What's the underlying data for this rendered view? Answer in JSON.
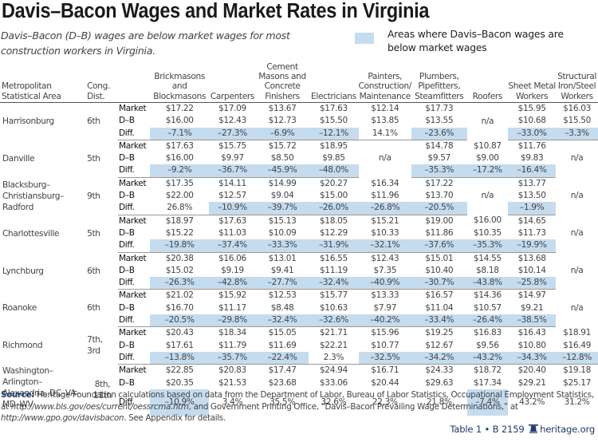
{
  "header": {
    "title": "Davis–Bacon Wages and Market Rates in Virginia",
    "subtitle": "Davis–Bacon (D–B) wages are below market wages for most construction workers in Virginia.",
    "legend_label": "Areas where Davis–Bacon wages are below market wages",
    "highlight_color": "#c5dcef"
  },
  "table": {
    "columns": {
      "msa": "Metropolitan Statistical Area",
      "cong": "Cong. Dist.",
      "trades": [
        "Brickmasons and Blockmasons",
        "Carpenters",
        "Cement Masons and Concrete Finishers",
        "Electricians",
        "Painters, Construction/ Maintenance",
        "Plumbers, Pipefitters, Steamfitters",
        "Roofers",
        "Sheet Metal Workers",
        "Structural Iron/Steel Workers"
      ]
    },
    "row_labels": {
      "market": "Market",
      "db": "D–B",
      "diff": "Diff."
    }
  },
  "chart_data": {
    "type": "table",
    "title": "Davis–Bacon Wages and Market Rates in Virginia",
    "subtitle": "Davis–Bacon (D–B) wages are below market wages for most construction workers in Virginia.",
    "legend": "Areas where Davis–Bacon wages are below market wages",
    "trades": [
      "Brickmasons and Blockmasons",
      "Carpenters",
      "Cement Masons and Concrete Finishers",
      "Electricians",
      "Painters, Construction/Maintenance",
      "Plumbers, Pipefitters, Steamfitters",
      "Roofers",
      "Sheet Metal Workers",
      "Structural Iron/Steel Workers"
    ],
    "areas": [
      {
        "name": "Harrisonburg",
        "cong": "6th",
        "market": [
          "$17.22",
          "$17.09",
          "$13.67",
          "$17.63",
          "$12.14",
          "$17.73",
          null,
          "$15.95",
          "$16.03"
        ],
        "db": [
          "$16.00",
          "$12.43",
          "$12.73",
          "$15.50",
          "$13.85",
          "$13.55",
          null,
          "$10.68",
          "$15.50"
        ],
        "diff": [
          "–7.1%",
          "–27.3%",
          "–6.9%",
          "–12.1%",
          "14.1%",
          "–23.6%",
          null,
          "–33.0%",
          "–3.3%"
        ]
      },
      {
        "name": "Danville",
        "cong": "5th",
        "market": [
          "$17.63",
          "$15.75",
          "$15.72",
          "$18.95",
          null,
          "$14.78",
          "$10.87",
          "$11.76",
          null
        ],
        "db": [
          "$16.00",
          "$9.97",
          "$8.50",
          "$9.85",
          null,
          "$9.57",
          "$9.00",
          "$9.83",
          null
        ],
        "diff": [
          "–9.2%",
          "–36.7%",
          "–45.9%",
          "–48.0%",
          null,
          "–35.3%",
          "–17.2%",
          "–16.4%",
          null
        ]
      },
      {
        "name": "Blacksburg–Christiansburg–Radford",
        "cong": "9th",
        "market": [
          "$17.35",
          "$14.11",
          "$14.99",
          "$20.27",
          "$16.34",
          "$17.22",
          null,
          "$13.77",
          null
        ],
        "db": [
          "$22.00",
          "$12.57",
          "$9.04",
          "$15.00",
          "$11.96",
          "$13.70",
          null,
          "$13.50",
          null
        ],
        "diff": [
          "26.8%",
          "–10.9%",
          "–39.7%",
          "–26.0%",
          "–26.8%",
          "–20.5%",
          null,
          "–1.9%",
          null
        ]
      },
      {
        "name": "Charlottesville",
        "cong": "5th",
        "market": [
          "$18.97",
          "$17.63",
          "$15.13",
          "$18.05",
          "$15.21",
          "$19.00",
          "$16.00",
          "$14.65",
          null
        ],
        "db": [
          "$15.22",
          "$11.03",
          "$10.09",
          "$12.29",
          "$10.33",
          "$11.86",
          "$10.35",
          "$11.73",
          null
        ],
        "diff": [
          "–19.8%",
          "–37.4%",
          "–33.3%",
          "–31.9%",
          "–32.1%",
          "–37.6%",
          "–35.3%",
          "–19.9%",
          null
        ]
      },
      {
        "name": "Lynchburg",
        "cong": "6th",
        "market": [
          "$20.38",
          "$16.06",
          "$13.01",
          "$16.55",
          "$12.43",
          "$15.01",
          "$14.55",
          "$13.68",
          null
        ],
        "db": [
          "$15.02",
          "$9.19",
          "$9.41",
          "$11.19",
          "$7.35",
          "$10.40",
          "$8.18",
          "$10.14",
          null
        ],
        "diff": [
          "–26.3%",
          "–42.8%",
          "–27.7%",
          "–32.4%",
          "–40.9%",
          "–30.7%",
          "–43.8%",
          "–25.8%",
          null
        ]
      },
      {
        "name": "Roanoke",
        "cong": "6th",
        "market": [
          "$21.02",
          "$15.92",
          "$12.53",
          "$15.77",
          "$13.33",
          "$16.57",
          "$14.36",
          "$14.97",
          null
        ],
        "db": [
          "$16.70",
          "$11.17",
          "$8.48",
          "$10.63",
          "$7.97",
          "$11.04",
          "$10.57",
          "$9.21",
          null
        ],
        "diff": [
          "–20.5%",
          "–29.8%",
          "–32.4%",
          "–32.6%",
          "–40.2%",
          "–33.4%",
          "–26.4%",
          "–38.5%",
          null
        ]
      },
      {
        "name": "Richmond",
        "cong": "7th, 3rd",
        "market": [
          "$20.43",
          "$18.34",
          "$15.05",
          "$21.71",
          "$15.96",
          "$19.25",
          "$16.83",
          "$16.43",
          "$18.91"
        ],
        "db": [
          "$17.61",
          "$11.79",
          "$11.69",
          "$22.21",
          "$10.77",
          "$12.67",
          "$9.56",
          "$10.80",
          "$16.49"
        ],
        "diff": [
          "–13.8%",
          "–35.7%",
          "–22.4%",
          "2.3%",
          "–32.5%",
          "–34.2%",
          "–43.2%",
          "–34.3%",
          "–12.8%"
        ]
      },
      {
        "name": "Washington–Arlington–Alexandria, DC–VA–MD–WV",
        "cong": "8th, 11th",
        "market": [
          "$22.85",
          "$20.83",
          "$17.47",
          "$24.94",
          "$16.71",
          "$24.33",
          "$18.72",
          "$20.40",
          "$19.18"
        ],
        "db": [
          "$20.35",
          "$21.53",
          "$23.68",
          "$33.06",
          "$20.44",
          "$29.63",
          "$17.34",
          "$29.21",
          "$25.17"
        ],
        "diff": [
          "–10.9%",
          "3.4%",
          "35.5%",
          "32.6%",
          "22.3%",
          "21.8%",
          "–7.4%",
          "43.2%",
          "31.2%"
        ]
      }
    ],
    "na_label": "n/a"
  },
  "footer": {
    "source_label": "Source:",
    "source_text_1": " Heritage Foundation calculations based on data from the Department of Labor, Bureau of Labor Statistics, Occupational Employment Statistics, at ",
    "source_url_1": "http://www.bls.gov/oes/current/oessrcma.htm",
    "source_text_2": ", and Government Printing Office, “Davis–Bacon Prevailing Wage Determinations,” at ",
    "source_url_2": "http://www.gpo.gov/davisbacon",
    "source_text_3": ". See Appendix for details.",
    "table_ref": "Table 1 • B 2159",
    "site": "heritage.org"
  }
}
